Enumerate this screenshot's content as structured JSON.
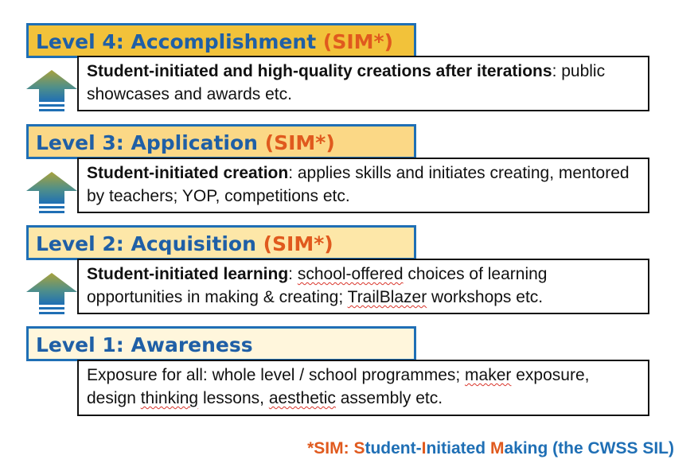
{
  "levels": [
    {
      "title": "Level 4: Accomplishment",
      "sim": "(SIM*)",
      "header_bg": "#f2c23a",
      "desc_bold": "Student-initiated and high-quality creations after iterations",
      "desc_rest": ": public showcases and awards etc."
    },
    {
      "title": "Level 3: Application",
      "sim": "(SIM*)",
      "header_bg": "#fbd886",
      "desc_bold": "Student-initiated creation",
      "desc_rest": ": applies skills and initiates creating, mentored by teachers; YOP, competitions etc."
    },
    {
      "title": "Level 2: Acquisition",
      "sim": "(SIM*)",
      "header_bg": "#fde7a8",
      "desc_bold": "Student-initiated learning",
      "desc_rest_a": ": ",
      "desc_rest_b": "school-offered",
      "desc_rest_c": " choices of learning opportunities in making & creating; ",
      "desc_rest_d": "TrailBlazer",
      "desc_rest_e": " workshops etc."
    },
    {
      "title": "Level 1: Awareness",
      "header_bg": "#fff6dc",
      "desc_a": "Exposure for all: whole level / school programmes; ",
      "desc_b": "maker",
      "desc_c": " exposure, design ",
      "desc_d": "thinking",
      "desc_e": " lessons, ",
      "desc_f": "aesthetic",
      "desc_g": " assembly etc."
    }
  ],
  "footnote": {
    "p1": "*SIM: ",
    "s": "S",
    "p2": "tudent-",
    "i": "I",
    "p3": "nitiated ",
    "m": "M",
    "p4": "aking (the CWSS SIL)"
  },
  "colors": {
    "blue": "#1f6fb5",
    "orange": "#e05a1e",
    "arrow_top": "#a8a23c",
    "arrow_bottom": "#1f6fb5"
  }
}
